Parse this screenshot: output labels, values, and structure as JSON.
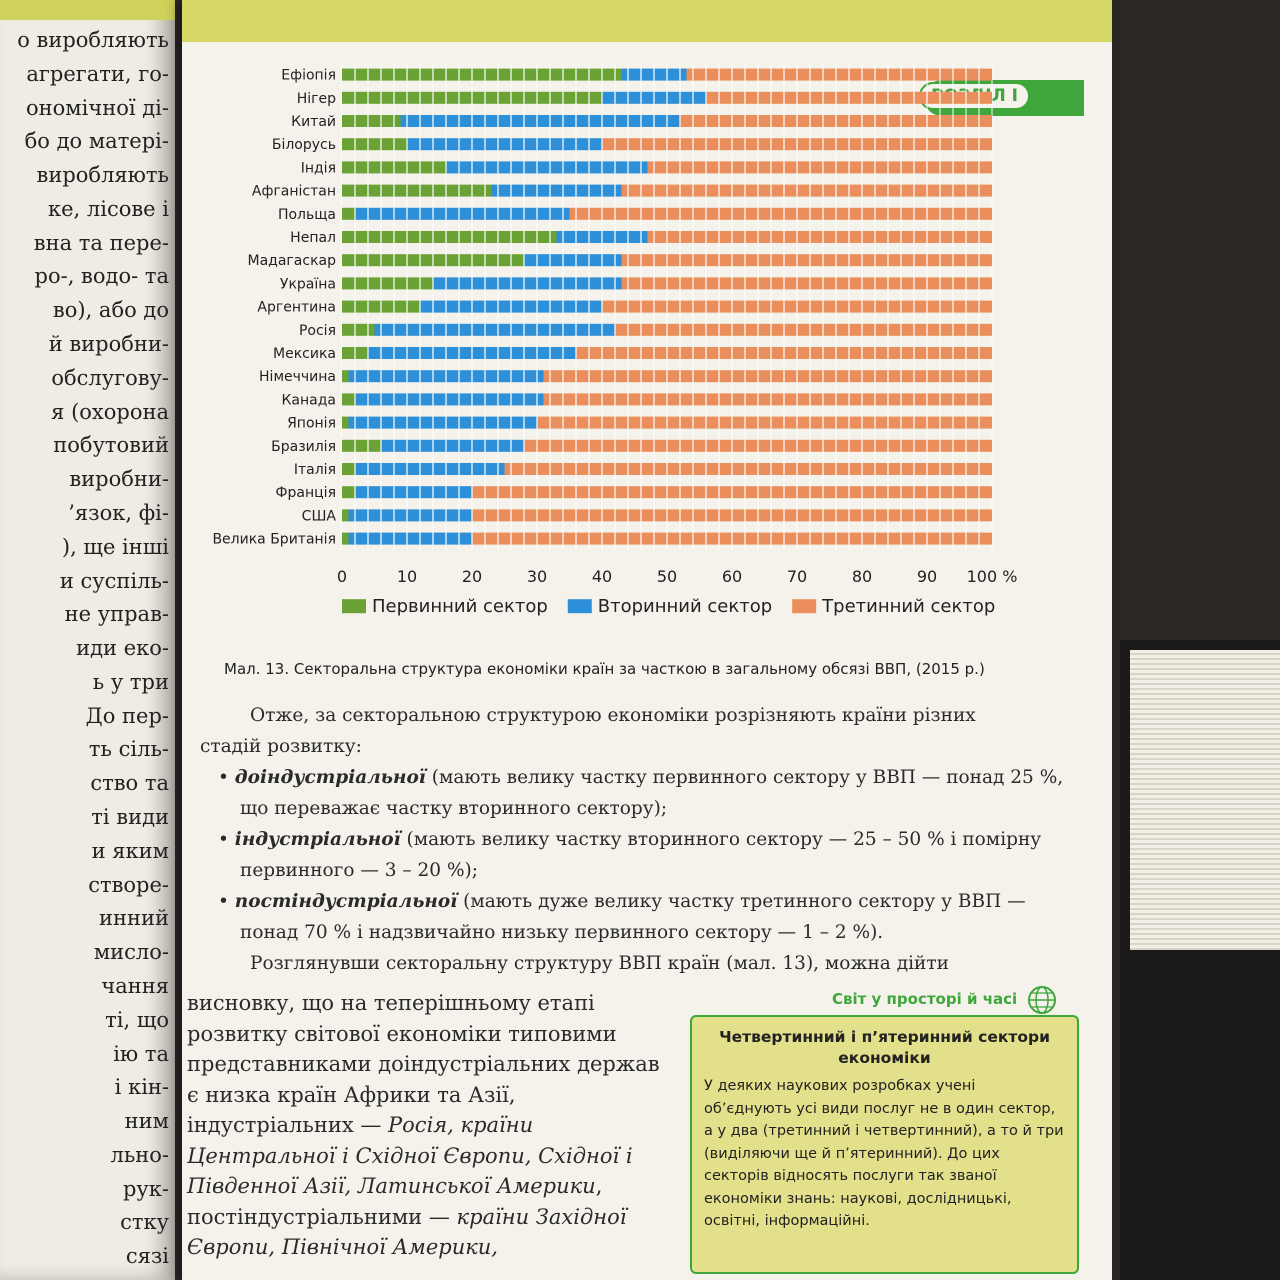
{
  "left_page": {
    "lines": [
      "о виробляють",
      "агрегати, го-",
      "ономічної ді-",
      "бо до матері-",
      "виробляють",
      "ке, лісове і",
      "вна та пере-",
      "ро-, водо- та",
      "во), або до",
      "й виробни-",
      "обслугову-",
      "я (охорона",
      "побутовий",
      "виробни-",
      "’язок, фі-",
      "), ще інші",
      "и суспіль-",
      "не управ-",
      "иди еко-",
      "ь у три",
      "До пер-",
      "ть сіль-",
      "ство та",
      "ті види",
      "и яким",
      "створе-",
      "инний",
      "мисло-",
      "чання",
      "ті, що",
      "ію та",
      "і кін-",
      "ним",
      "льно-",
      "рук-",
      "стку",
      "сязі"
    ]
  },
  "section_label": "РОЗДІЛ І",
  "chart_data": {
    "type": "bar",
    "stacked": true,
    "orientation": "horizontal",
    "categories": [
      "Ефіопія",
      "Нігер",
      "Китай",
      "Білорусь",
      "Індія",
      "Афганістан",
      "Польща",
      "Непал",
      "Мадагаскар",
      "Україна",
      "Аргентина",
      "Росія",
      "Мексика",
      "Німеччина",
      "Канада",
      "Японія",
      "Бразилія",
      "Італія",
      "Франція",
      "США",
      "Велика Британія"
    ],
    "series": [
      {
        "name": "Первинний сектор",
        "color": "#6aa236",
        "values": [
          43,
          40,
          9,
          10,
          16,
          23,
          2,
          33,
          28,
          14,
          12,
          5,
          4,
          1,
          2,
          1,
          6,
          2,
          2,
          1,
          1
        ]
      },
      {
        "name": "Вторинний сектор",
        "color": "#2d8fd8",
        "values": [
          10,
          16,
          43,
          30,
          31,
          20,
          33,
          14,
          15,
          29,
          28,
          37,
          32,
          30,
          29,
          29,
          22,
          23,
          18,
          19,
          19
        ]
      },
      {
        "name": "Третинний сектор",
        "color": "#ec8e5c",
        "values": [
          47,
          44,
          48,
          60,
          53,
          57,
          65,
          53,
          57,
          57,
          60,
          58,
          64,
          69,
          69,
          70,
          72,
          75,
          80,
          80,
          80
        ]
      }
    ],
    "xlim": [
      0,
      100
    ],
    "xticks": [
      "0",
      "10",
      "20",
      "30",
      "40",
      "50",
      "60",
      "70",
      "80",
      "90",
      "100 %"
    ],
    "grid": true,
    "legend_position": "bottom"
  },
  "caption": "Мал. 13. Секторальна структура економіки країн за часткою в загальному обсязі ВВП, (2015 р.)",
  "body": {
    "intro_1": "Отже, за секторальною структурою економіки розрізняють країни різних",
    "intro_2": "стадій розвитку:",
    "b1_term": "доіндустріальної",
    "b1_text": " (мають велику частку первинного сектору у ВВП — понад 25 %, що переважає частку вторинного сектору);",
    "b2_term": "індустріальної",
    "b2_text": " (мають велику частку вторинного сектору — 25 – 50 % і помірну первинного — 3 – 20 %);",
    "b3_term": "постіндустріальної",
    "b3_text": " (мають дуже велику частку третинного сектору у ВВП — понад 70 % і надзвичайно низьку первинного сектору — 1 – 2 %).",
    "conclusion_1": "Розглянувши секторальну структуру ВВП країн (мал. 13), можна дійти",
    "lower_a": "висновку, що на теперішньому етапі розвитку світової економіки типовими представниками доіндустріальних держав є низка країн Африки та Азії, індустріальних — ",
    "lower_b": "Росія, країни Центральної і Східної Європи, Східної і Південної Азії, Латинської Америки",
    "lower_c": ", постіндустріальними — ",
    "lower_d": "країни Західної Європи, Північної Америки,"
  },
  "sidebar": {
    "header": "Світ у просторі й часі",
    "title": "Четвертинний і п’ятеринний сектори економіки",
    "text": "У деяких наукових розробках учені об’єднують усі види послуг не в один сектор, а у два (третинний і четвертинний), а то й три (виділяючи ще й п’ятеринний). До цих секторів відносять послуги так званої економіки знань: наукові, дослідницькі, освітні, інформаційні."
  }
}
